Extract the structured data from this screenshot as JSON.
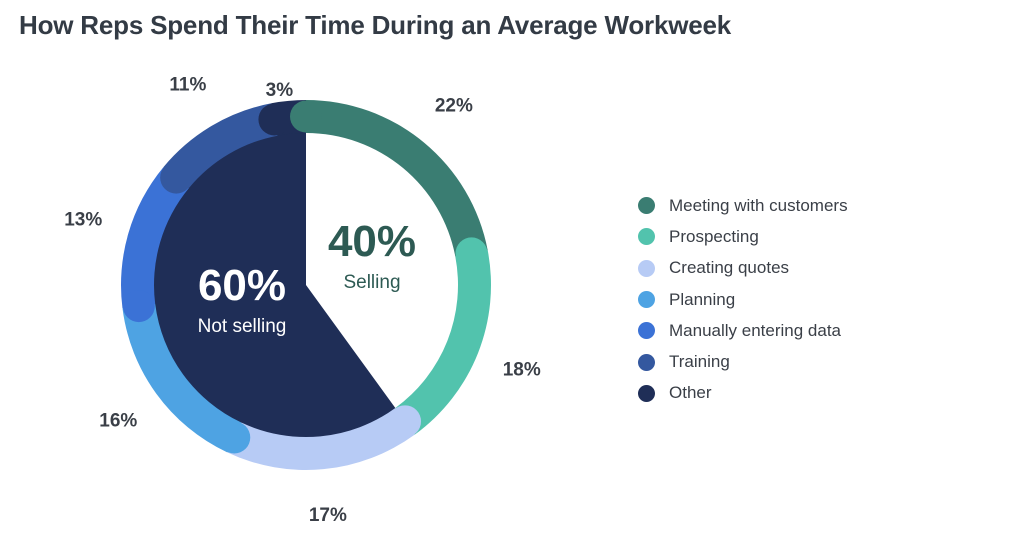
{
  "title": "How Reps Spend Their Time During an Average Workweek",
  "chart_data": {
    "type": "pie",
    "title": "How Reps Spend Their Time During an Average Workweek",
    "series": [
      {
        "name": "Meeting with customers",
        "value": 22,
        "label": "22%",
        "color": "#3a7d72"
      },
      {
        "name": "Prospecting",
        "value": 18,
        "label": "18%",
        "color": "#52c3ad"
      },
      {
        "name": "Creating quotes",
        "value": 17,
        "label": "17%",
        "color": "#b7cbf5"
      },
      {
        "name": "Planning",
        "value": 16,
        "label": "16%",
        "color": "#4ea3e3"
      },
      {
        "name": "Manually entering data",
        "value": 13,
        "label": "13%",
        "color": "#3b72d6"
      },
      {
        "name": "Training",
        "value": 11,
        "label": "11%",
        "color": "#34589f"
      },
      {
        "name": "Other",
        "value": 3,
        "label": "3%",
        "color": "#1f2e57"
      }
    ],
    "inner": [
      {
        "value": 40,
        "label": "40%",
        "sublabel": "Selling",
        "fill": "#ffffff",
        "text_color": "#2d5a53"
      },
      {
        "value": 60,
        "label": "60%",
        "sublabel": "Not selling",
        "fill": "#1f2e57",
        "text_color": "#ffffff"
      }
    ],
    "legend_position": "right"
  }
}
